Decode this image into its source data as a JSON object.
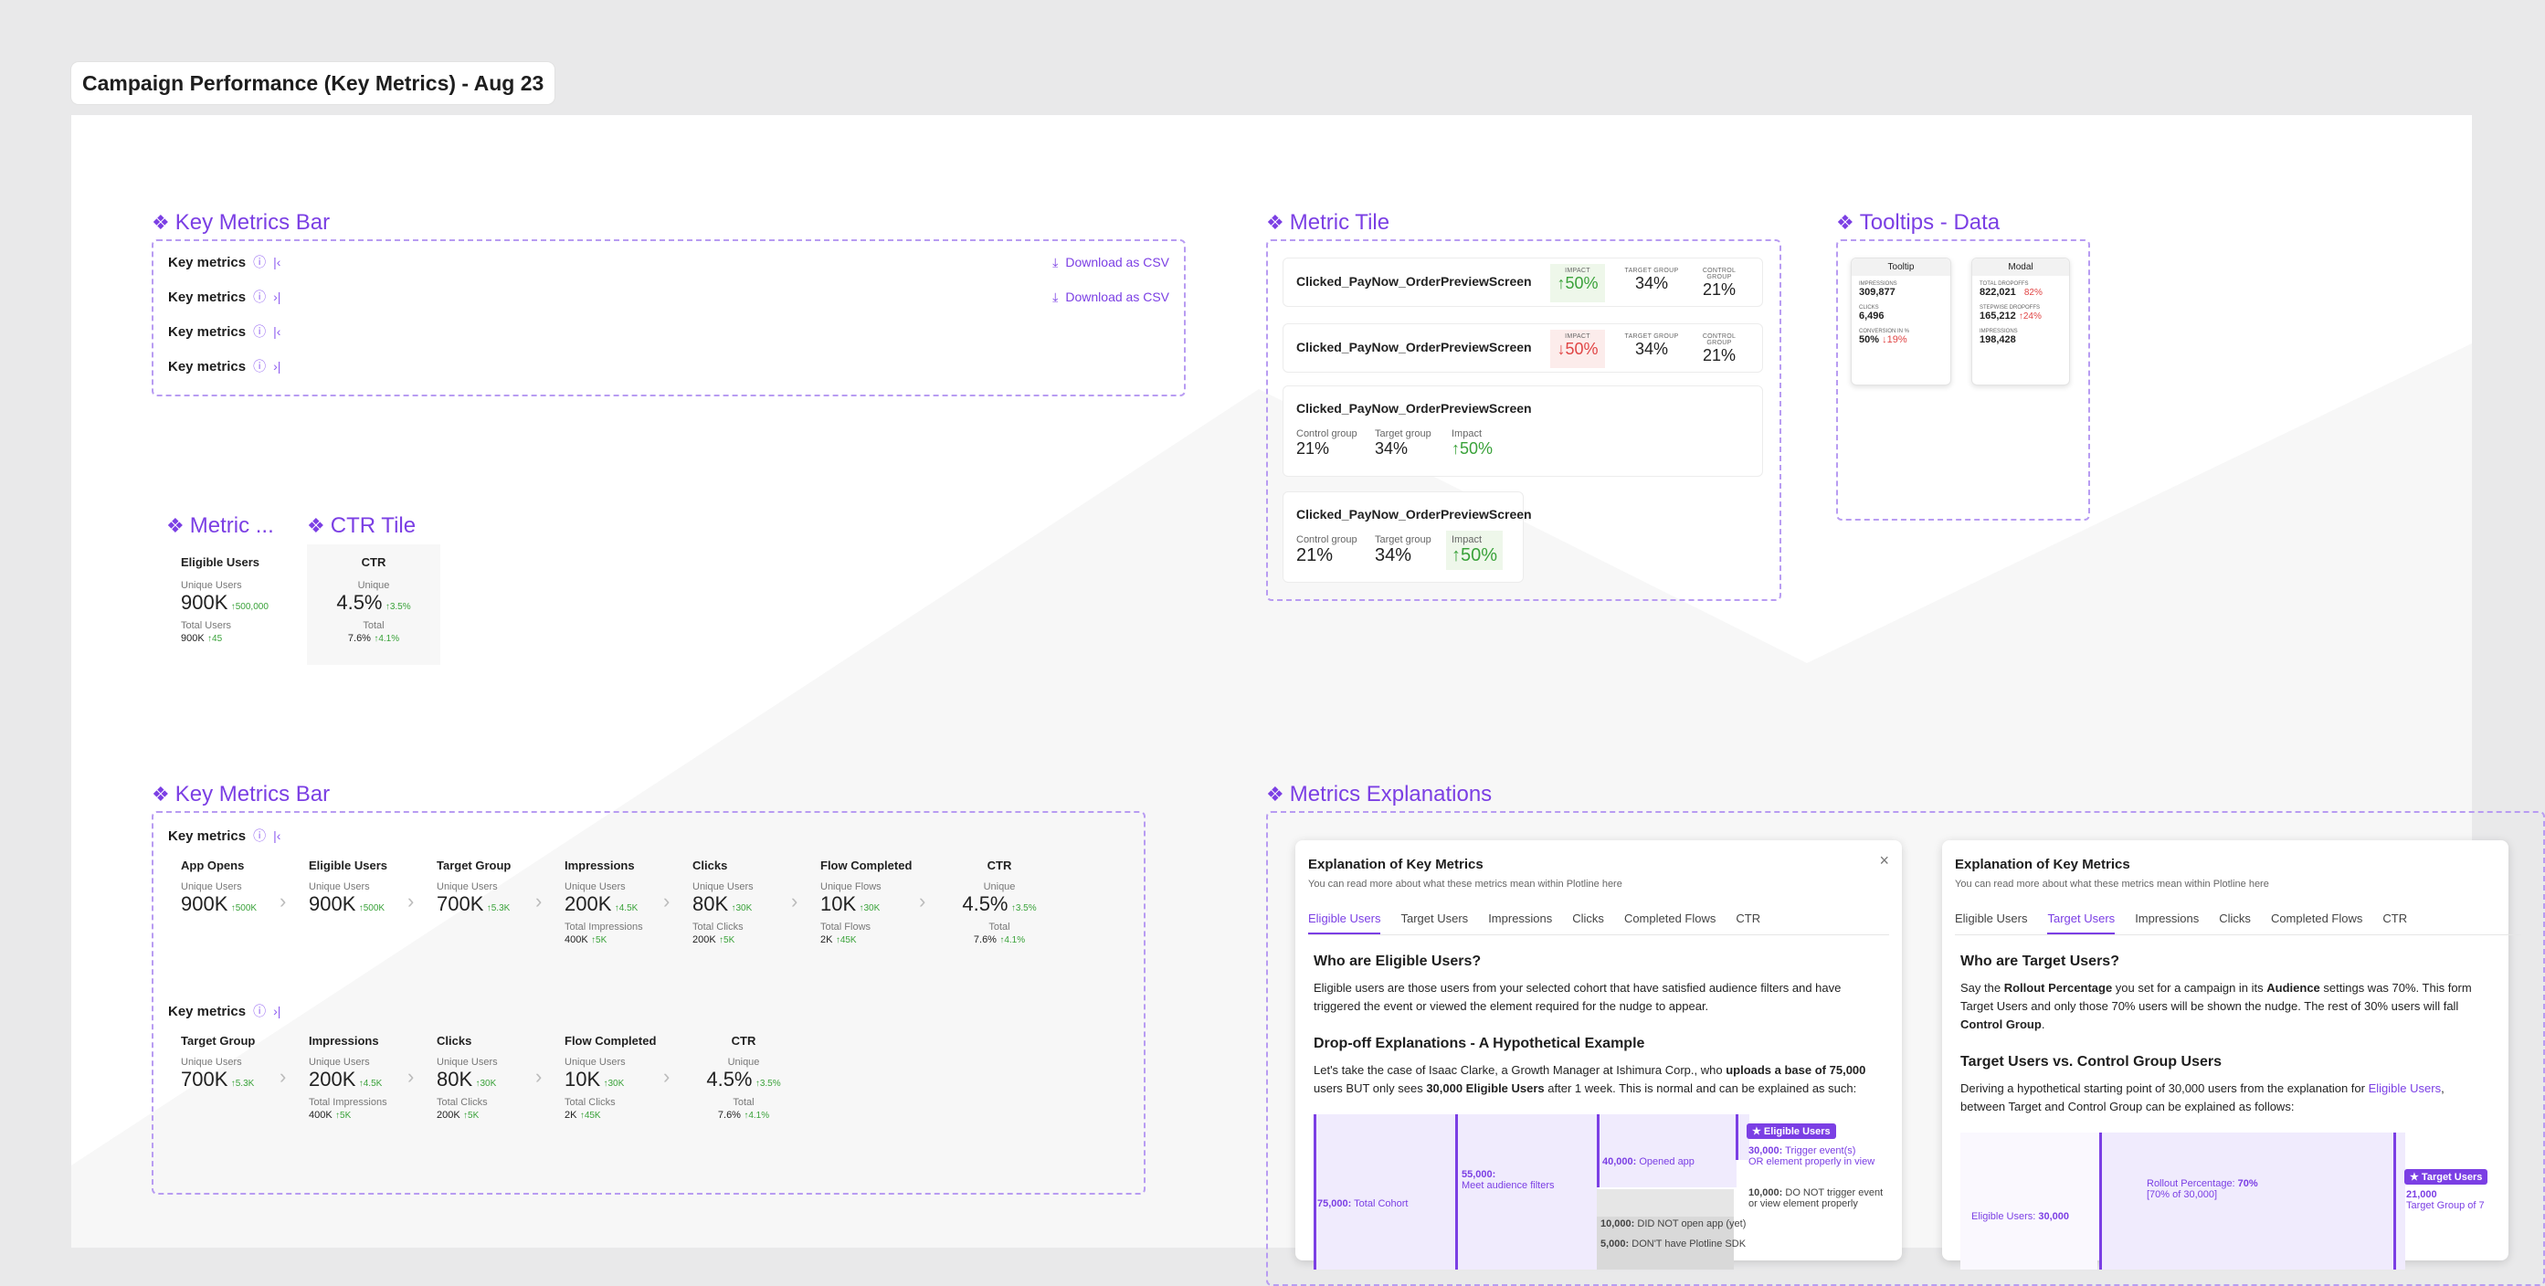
{
  "page_title": "Campaign Performance (Key Metrics) - Aug 23",
  "icons": {
    "info": "info-icon",
    "collapse": "collapse-icon",
    "download": "download-icon",
    "component": "component-icon",
    "arrow_up": "arrow-up-icon",
    "arrow_down": "arrow-down-icon",
    "chevron": "chevron-right-icon",
    "close": "close-icon"
  },
  "key_metrics_bar_1": {
    "title": "Key Metrics Bar",
    "rows": [
      {
        "label": "Key metrics",
        "toggle": "|‹",
        "download": "Download as CSV"
      },
      {
        "label": "Key metrics",
        "toggle": "›|",
        "download": "Download as CSV"
      },
      {
        "label": "Key metrics",
        "toggle": "|‹",
        "download": ""
      },
      {
        "label": "Key metrics",
        "toggle": "›|",
        "download": ""
      }
    ]
  },
  "metric_tile": {
    "title": "Metric Tile",
    "tiles": [
      {
        "name": "Clicked_PayNow_OrderPreviewScreen",
        "impact_label": "IMPACT",
        "impact": "50%",
        "target_label": "TARGET GROUP",
        "target": "34%",
        "control_label": "CONTROL GROUP",
        "control": "21%"
      },
      {
        "name": "Clicked_PayNow_OrderPreviewScreen",
        "impact_label": "IMPACT",
        "impact": "50%",
        "target_label": "TARGET GROUP",
        "target": "34%",
        "control_label": "CONTROL GROUP",
        "control": "21%"
      },
      {
        "name": "Clicked_PayNow_OrderPreviewScreen",
        "control_label": "Control group",
        "control": "21%",
        "target_label": "Target group",
        "target": "34%",
        "impact_label": "Impact",
        "impact": "50%"
      },
      {
        "name": "Clicked_PayNow_OrderPreviewScreen",
        "control_label": "Control group",
        "control": "21%",
        "target_label": "Target group",
        "target": "34%",
        "impact_label": "Impact",
        "impact": "50%"
      }
    ]
  },
  "tooltips": {
    "title": "Tooltips - Data",
    "tooltip": {
      "header": "Tooltip",
      "items": [
        {
          "label": "IMPRESSIONS",
          "value": "309,877"
        },
        {
          "label": "CLICKS",
          "value": "6,496"
        },
        {
          "label": "CONVERSION IN %",
          "value": "50%",
          "delta": "19%"
        }
      ]
    },
    "modal": {
      "header": "Modal",
      "items": [
        {
          "label": "TOTAL DROPOFFS",
          "value": "822,021",
          "delta": "82%"
        },
        {
          "label": "STEPWISE DROPOFFS",
          "value": "165,212",
          "delta": "24%"
        },
        {
          "label": "IMPRESSIONS",
          "value": "198,428"
        }
      ]
    }
  },
  "metric_small": {
    "title": "Metric ...",
    "name": "Eligible Users",
    "unique_label": "Unique Users",
    "unique_value": "900K",
    "unique_delta": "500,000",
    "total_label": "Total Users",
    "total_value": "900K",
    "total_delta": "45"
  },
  "ctr_tile": {
    "title": "CTR Tile",
    "name": "CTR",
    "unique_label": "Unique",
    "unique_value": "4.5%",
    "unique_delta": "3.5%",
    "total_label": "Total",
    "total_value": "7.6%",
    "total_delta": "4.1%"
  },
  "key_metrics_bar_2": {
    "title": "Key Metrics Bar",
    "row1": {
      "label": "Key metrics",
      "toggle": "|‹",
      "metrics": [
        {
          "name": "App Opens",
          "unique_label": "Unique Users",
          "value": "900K",
          "delta": "500K"
        },
        {
          "name": "Eligible Users",
          "unique_label": "Unique Users",
          "value": "900K",
          "delta": "500K"
        },
        {
          "name": "Target Group",
          "unique_label": "Unique Users",
          "value": "700K",
          "delta": "5.3K"
        },
        {
          "name": "Impressions",
          "unique_label": "Unique Users",
          "value": "200K",
          "delta": "4.5K",
          "total_label": "Total Impressions",
          "total_value": "400K",
          "total_delta": "5K"
        },
        {
          "name": "Clicks",
          "unique_label": "Unique Users",
          "value": "80K",
          "delta": "30K",
          "total_label": "Total Clicks",
          "total_value": "200K",
          "total_delta": "5K"
        },
        {
          "name": "Flow Completed",
          "unique_label": "Unique Flows",
          "value": "10K",
          "delta": "30K",
          "total_label": "Total Flows",
          "total_value": "2K",
          "total_delta": "45K"
        },
        {
          "name": "CTR",
          "unique_label": "Unique",
          "value": "4.5%",
          "delta": "3.5%",
          "total_label": "Total",
          "total_value": "7.6%",
          "total_delta": "4.1%"
        }
      ]
    },
    "row2": {
      "label": "Key metrics",
      "toggle": "›|",
      "metrics": [
        {
          "name": "Target Group",
          "unique_label": "Unique Users",
          "value": "700K",
          "delta": "5.3K"
        },
        {
          "name": "Impressions",
          "unique_label": "Unique Users",
          "value": "200K",
          "delta": "4.5K",
          "total_label": "Total Impressions",
          "total_value": "400K",
          "total_delta": "5K"
        },
        {
          "name": "Clicks",
          "unique_label": "Unique Users",
          "value": "80K",
          "delta": "30K",
          "total_label": "Total Clicks",
          "total_value": "200K",
          "total_delta": "5K"
        },
        {
          "name": "Flow Completed",
          "unique_label": "Unique Users",
          "value": "10K",
          "delta": "30K",
          "total_label": "Total Clicks",
          "total_value": "2K",
          "total_delta": "45K"
        },
        {
          "name": "CTR",
          "unique_label": "Unique",
          "value": "4.5%",
          "delta": "3.5%",
          "total_label": "Total",
          "total_value": "7.6%",
          "total_delta": "4.1%"
        }
      ]
    }
  },
  "explanations": {
    "title": "Metrics Explanations",
    "panel1": {
      "heading": "Explanation of Key Metrics",
      "subtitle": "You can read more about what these metrics mean within Plotline here",
      "tabs": [
        "Eligible Users",
        "Target Users",
        "Impressions",
        "Clicks",
        "Completed Flows",
        "CTR"
      ],
      "active_tab": 0,
      "q1": "Who are Eligible Users?",
      "p1": "Eligible users are those users from your selected cohort that have satisfied audience filters and have triggered the event or viewed the element required for the nudge to appear.",
      "q2": "Drop-off Explanations - A Hypothetical Example",
      "p2a": "Let's take the case of Isaac Clarke, a Growth Manager at Ishimura Corp., who ",
      "p2b": "uploads a base of 75,000",
      "p2c": " users BUT only sees ",
      "p2d": "30,000 Eligible Users",
      "p2e": " after 1 week. This is normal and can be explained as such:",
      "funnel": {
        "s1_num": "75,000:",
        "s1": " Total Cohort",
        "s2_num": "55,000:",
        "s2": "Meet audience filters",
        "s3_num": "40,000:",
        "s3": " Opened app",
        "badge": "Eligible Users",
        "s4_num": "30,000:",
        "s4a": " Trigger event(s)",
        "s4b": "OR element properly in view",
        "d1_num": "10,000:",
        "d1a": " DO NOT trigger event",
        "d1b": "or view element properly",
        "d2_num": "10,000:",
        "d2": " DID NOT open app (yet)",
        "d3_num": "5,000:",
        "d3": " DON'T have Plotline SDK"
      }
    },
    "panel2": {
      "heading": "Explanation of Key Metrics",
      "subtitle": "You can read more about what these metrics mean within Plotline here",
      "tabs": [
        "Eligible Users",
        "Target Users",
        "Impressions",
        "Clicks",
        "Completed Flows",
        "CTR"
      ],
      "active_tab": 1,
      "q1": "Who are Target Users?",
      "p1a": "Say the ",
      "p1b": "Rollout Percentage",
      "p1c": " you set for a campaign in its ",
      "p1d": "Audience",
      "p1e": " settings was 70%. This form",
      "p1f": "Target Users and only those 70% users will be shown the nudge. The rest of 30% users will fall",
      "p1g": "Control Group",
      "q2": "Target Users vs. Control Group Users",
      "p2a": "Deriving a hypothetical starting point of 30,000 users from the explanation for ",
      "p2b": "Eligible Users",
      "p2c": ",",
      "p2d": "between Target and Control Group can be explained as follows:",
      "funnel": {
        "rollout": "Rollout Percentage: ",
        "rollout_val": "70%",
        "rollout_sub": "[70% of 30,000]",
        "eligible": "Eligible Users: ",
        "eligible_val": "30,000",
        "badge": "Target Users",
        "target_val": "21,000",
        "target_sub": "Target Group of 7"
      }
    }
  }
}
